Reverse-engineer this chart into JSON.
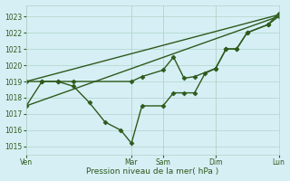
{
  "xlabel": "Pression niveau de la mer( hPa )",
  "bg_color": "#d6eff5",
  "line_color": "#2d5a1b",
  "grid_color": "#b0d4c8",
  "ylim": [
    1014.5,
    1023.7
  ],
  "yticks": [
    1015,
    1016,
    1017,
    1018,
    1019,
    1020,
    1021,
    1022,
    1023
  ],
  "xtick_labels": [
    "Ven",
    "Mar",
    "Sam",
    "Dim",
    "Lun"
  ],
  "xtick_positions": [
    0,
    10,
    13,
    18,
    24
  ],
  "vlines": [
    0,
    10,
    13,
    18,
    24
  ],
  "series": [
    {
      "x": [
        0,
        24
      ],
      "y": [
        1017.5,
        1023.0
      ],
      "marker": "None",
      "markersize": 0,
      "lw": 1.0
    },
    {
      "x": [
        0,
        24
      ],
      "y": [
        1019.0,
        1023.1
      ],
      "marker": "None",
      "markersize": 0,
      "lw": 1.0
    },
    {
      "x": [
        0,
        1.5,
        3,
        4.5,
        10,
        11,
        13,
        14,
        15,
        16,
        18,
        19,
        20,
        21,
        23,
        24
      ],
      "y": [
        1019.0,
        1019.0,
        1019.0,
        1019.0,
        1019.0,
        1019.3,
        1019.7,
        1020.5,
        1019.2,
        1019.3,
        1019.8,
        1021.0,
        1021.0,
        1022.0,
        1022.5,
        1023.0
      ],
      "marker": "D",
      "markersize": 2.5,
      "lw": 1.0
    },
    {
      "x": [
        0,
        1.5,
        3,
        4.5,
        6,
        7.5,
        9,
        10,
        11,
        13,
        14,
        15,
        16,
        17,
        18,
        19,
        20,
        21,
        23,
        24
      ],
      "y": [
        1017.5,
        1019.0,
        1019.0,
        1018.7,
        1017.7,
        1016.5,
        1016.0,
        1015.2,
        1017.5,
        1017.5,
        1018.3,
        1018.3,
        1018.3,
        1019.5,
        1019.8,
        1021.0,
        1021.0,
        1022.0,
        1022.5,
        1023.2
      ],
      "marker": "D",
      "markersize": 2.5,
      "lw": 1.0
    }
  ]
}
